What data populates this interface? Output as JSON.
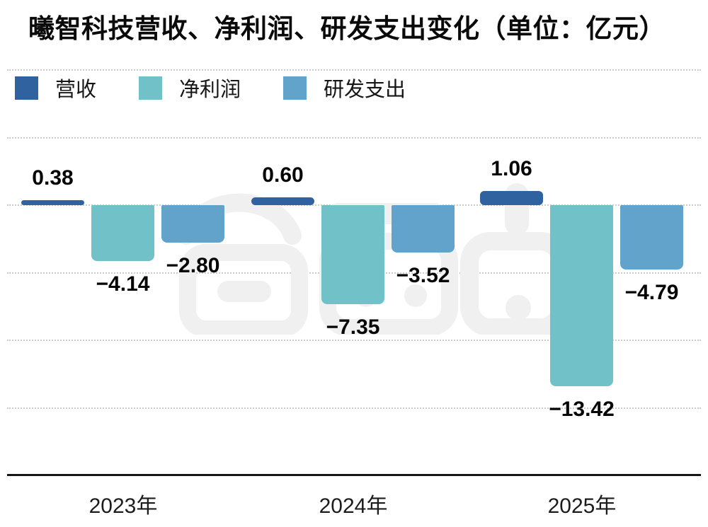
{
  "title": "曦智科技营收、净利润、研发支出变化（单位：亿元）",
  "legend": {
    "items": [
      {
        "key": "revenue",
        "label": "营收",
        "color": "#30629f"
      },
      {
        "key": "net-profit",
        "label": "净利润",
        "color": "#71c1c9"
      },
      {
        "key": "rd-spend",
        "label": "研发支出",
        "color": "#61a3cb"
      }
    ]
  },
  "watermark": {
    "name": "zhidongxi-logo-watermark",
    "color": "#f0f0f0"
  },
  "colors": {
    "grid": "#cccccc",
    "axis": "#161616",
    "label_text": "#050505",
    "background": "#ffffff"
  },
  "chart_data": {
    "type": "bar",
    "title": "曦智科技营收、净利润、研发支出变化",
    "unit": "亿元",
    "categories": [
      "2023年",
      "2024年",
      "2025年"
    ],
    "series": [
      {
        "key": "revenue",
        "name": "营收",
        "color": "#30629f",
        "values": [
          0.38,
          0.6,
          1.06
        ],
        "labels": [
          "0.38",
          "0.60",
          "1.06"
        ]
      },
      {
        "key": "net-profit",
        "name": "净利润",
        "color": "#71c1c9",
        "values": [
          -4.14,
          -7.35,
          -13.42
        ],
        "labels": [
          "−4.14",
          "−7.35",
          "−13.42"
        ]
      },
      {
        "key": "rd-spend",
        "name": "研发支出",
        "color": "#61a3cb",
        "values": [
          -2.8,
          -3.52,
          -4.79
        ],
        "labels": [
          "−2.80",
          "−3.52",
          "−4.79"
        ]
      }
    ],
    "ylim": [
      -20,
      10
    ],
    "gridline_values": [
      10,
      5,
      0,
      -5,
      -10,
      -15
    ],
    "baseline_value": -20,
    "grid": "dotted",
    "legend_position": "top",
    "value_labels_shown": true
  }
}
